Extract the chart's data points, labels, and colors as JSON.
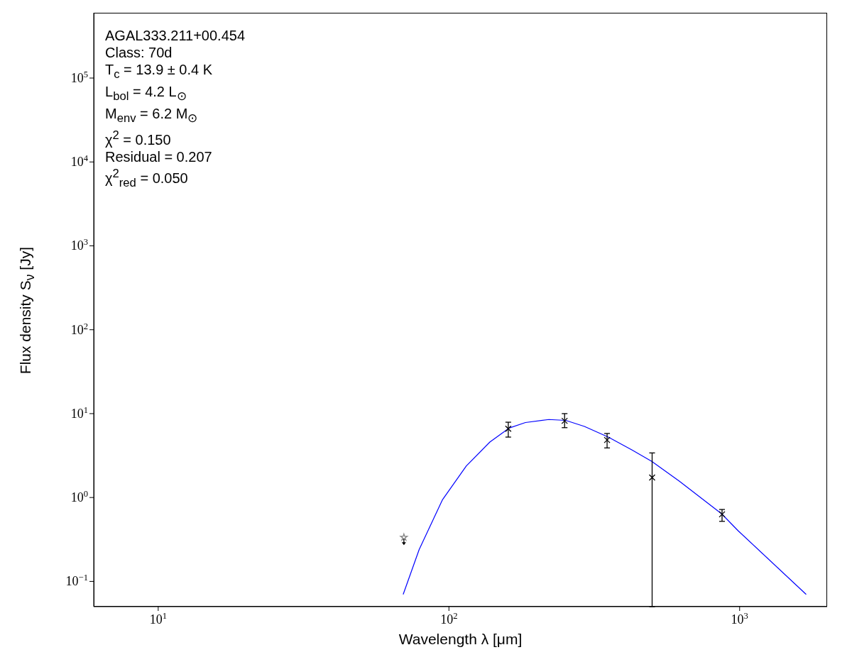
{
  "chart_data": {
    "type": "scatter",
    "xlabel": "Wavelength λ [μm]",
    "ylabel": "Flux density S$_{ν}$ [Jy]",
    "log": "xy",
    "xlim": [
      6,
      2000
    ],
    "ylim": [
      0.05,
      600000
    ],
    "xticks": [
      {
        "value": 10,
        "label": "10$^{1}$"
      },
      {
        "value": 100,
        "label": "10$^{2}$"
      },
      {
        "value": 1000,
        "label": "10$^{3}$"
      }
    ],
    "yticks": [
      {
        "value": 0.1,
        "label": "10$^{−1}$"
      },
      {
        "value": 1,
        "label": "10$^{0}$"
      },
      {
        "value": 10,
        "label": "10$^{1}$"
      },
      {
        "value": 100,
        "label": "10$^{2}$"
      },
      {
        "value": 1000,
        "label": "10$^{3}$"
      },
      {
        "value": 10000,
        "label": "10$^{4}$"
      },
      {
        "value": 100000,
        "label": "10$^{5}$"
      }
    ],
    "annotations": [
      "AGAL333.211+00.454",
      "Class: 70d",
      "T$_{c}$ = 13.9 ± 0.4 K",
      "L$_{bol}$ = 4.2 L$_{⊙}$",
      "M$_{env}$ = 6.2 M$_{⊙}$",
      "χ$^{2}$ = 0.150",
      "Residual = 0.207",
      "χ$^{2}$$_{red}$ = 0.050"
    ],
    "series": [
      {
        "type": "line",
        "color": "#0000ff",
        "marker": "none",
        "x": [
          69.6,
          79,
          95.1,
          114.8,
          138.3,
          160.9,
          183.3,
          220.7,
          252.3,
          292.5,
          353.3,
          425.6,
          498.6,
          619.6,
          867.6,
          988,
          1694
        ],
        "values": [
          0.07,
          0.24,
          0.945,
          2.38,
          4.58,
          6.71,
          7.83,
          8.51,
          8.3,
          7.04,
          5.25,
          3.7,
          2.7,
          1.57,
          0.638,
          0.402,
          0.07
        ]
      },
      {
        "color": "#000000",
        "marker": "cross",
        "x": [
          160,
          250,
          350,
          500,
          870
        ],
        "values": [
          6.6,
          8.2,
          4.85,
          1.73,
          0.63
        ],
        "errors": [
          [
            5.25,
            7.9
          ],
          [
            6.8,
            10
          ],
          [
            3.9,
            5.8
          ],
          [
            0.05,
            3.4
          ],
          [
            0.52,
            0.72
          ]
        ]
      },
      {
        "color": "#808080",
        "marker": "star",
        "x": [
          70
        ],
        "values": [
          0.335
        ]
      }
    ]
  }
}
